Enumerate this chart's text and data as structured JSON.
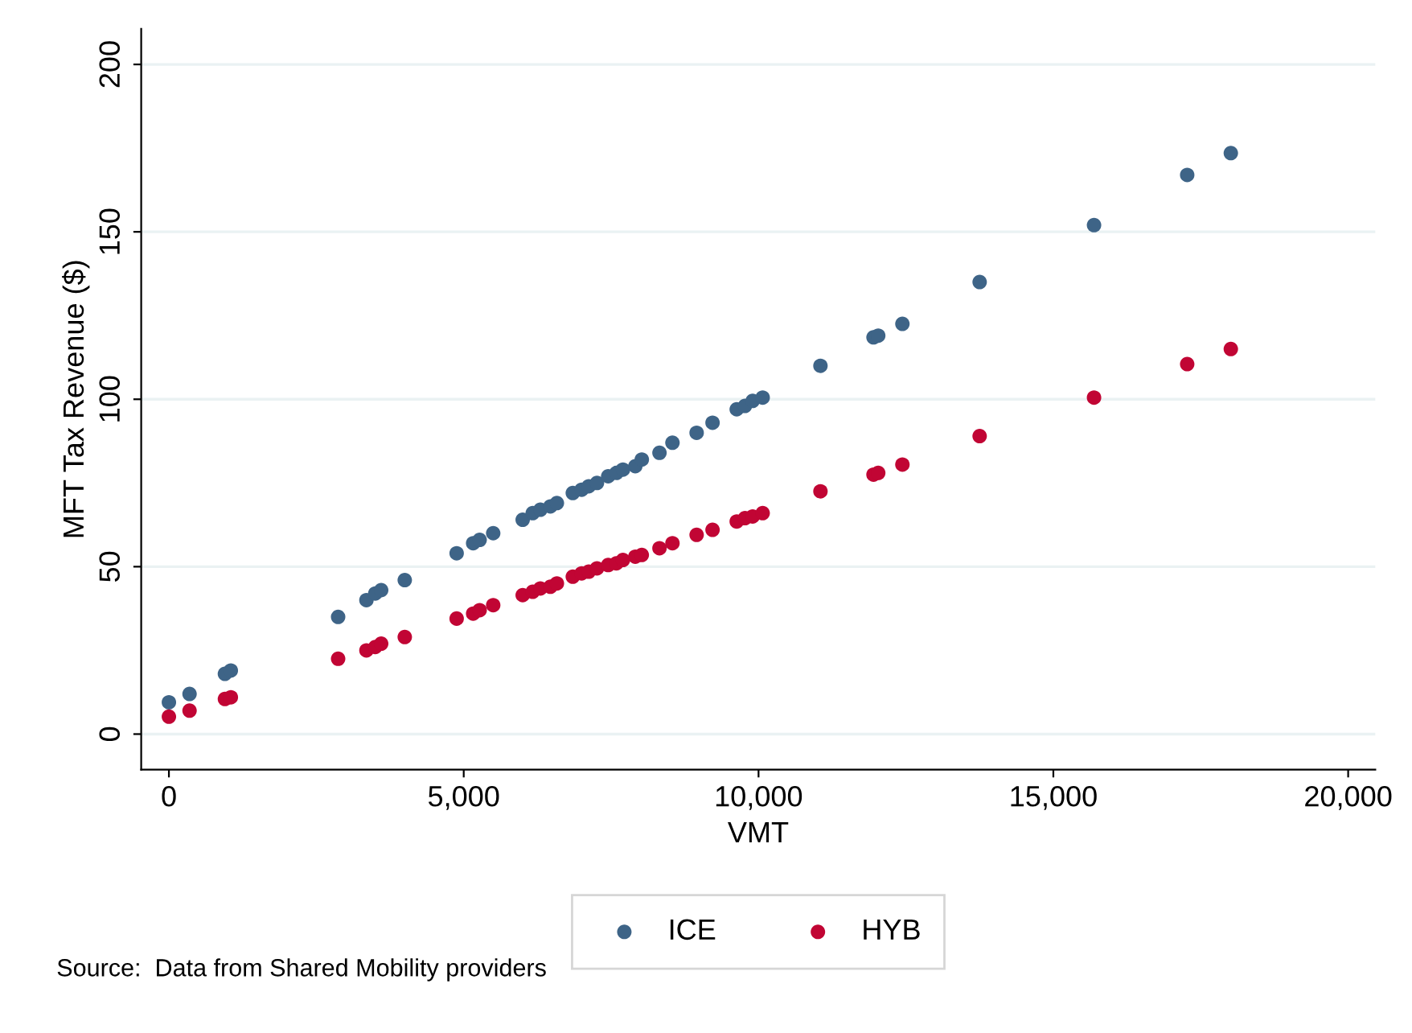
{
  "chart_data": {
    "type": "scatter",
    "xlabel": "VMT",
    "ylabel": "MFT Tax Revenue ($)",
    "x": [
      0,
      350,
      950,
      1050,
      2870,
      3350,
      3500,
      3600,
      4000,
      4880,
      5160,
      5270,
      5500,
      6000,
      6170,
      6300,
      6470,
      6580,
      6850,
      7000,
      7120,
      7260,
      7450,
      7590,
      7700,
      7910,
      8020,
      8320,
      8540,
      8950,
      9220,
      9630,
      9770,
      9900,
      10070,
      11050,
      11950,
      12030,
      12440,
      13750,
      15690,
      17270,
      18010
    ],
    "series": [
      {
        "name": "ICE",
        "color": "#3e6487",
        "values": [
          9.5,
          12,
          18,
          19,
          35,
          40,
          42,
          43,
          46,
          54,
          57,
          58,
          60,
          64,
          66,
          67,
          68,
          69,
          72,
          73,
          74,
          75,
          77,
          78,
          79,
          80,
          82,
          84,
          87,
          90,
          93,
          97,
          98,
          99.5,
          100.5,
          110,
          118.5,
          119,
          122.5,
          135,
          152,
          167,
          173.5
        ]
      },
      {
        "name": "HYB",
        "color": "#c10534",
        "values": [
          5.2,
          7,
          10.5,
          11,
          22.5,
          25,
          26,
          27,
          29,
          34.5,
          36,
          37,
          38.5,
          41.5,
          42.5,
          43.5,
          44,
          45,
          47,
          48,
          48.5,
          49.5,
          50.5,
          51,
          52,
          53,
          53.5,
          55.5,
          57,
          59.5,
          61,
          63.5,
          64.5,
          65,
          66,
          72.5,
          77.5,
          78,
          80.5,
          89,
          100.5,
          110.5,
          115
        ]
      }
    ],
    "xlim": [
      -470,
      20460
    ],
    "xticks": [
      0,
      {
        "value": 5000,
        "label": "5,000"
      },
      {
        "value": 10000,
        "label": "10,000"
      },
      {
        "value": 15000,
        "label": "15,000"
      },
      {
        "value": 20000,
        "label": "20,000"
      }
    ],
    "ylim": [
      -10.6,
      210.6
    ],
    "yticks": [
      0,
      50,
      100,
      150,
      200
    ],
    "grid": "y",
    "legend": "bottom",
    "marker": "circle",
    "annotations": [
      "Source:  Data from Shared Mobility providers"
    ]
  }
}
